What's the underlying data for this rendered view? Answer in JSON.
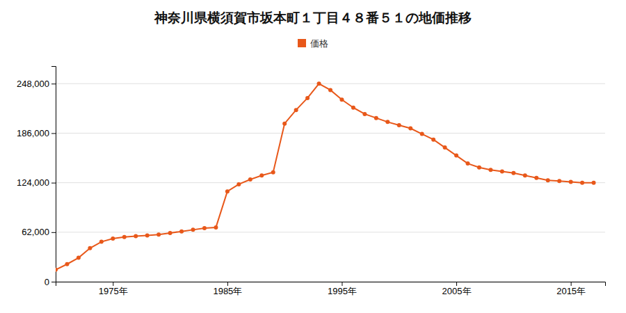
{
  "chart_data": {
    "type": "line",
    "title": "神奈川県横須賀市坂本町１丁目４８番５１の地価推移",
    "x": [
      1970,
      1971,
      1972,
      1973,
      1974,
      1975,
      1976,
      1977,
      1978,
      1979,
      1980,
      1981,
      1982,
      1983,
      1984,
      1985,
      1986,
      1987,
      1988,
      1989,
      1990,
      1991,
      1992,
      1993,
      1994,
      1995,
      1996,
      1997,
      1998,
      1999,
      2000,
      2001,
      2002,
      2003,
      2004,
      2005,
      2006,
      2007,
      2008,
      2009,
      2010,
      2011,
      2012,
      2013,
      2014,
      2015,
      2016,
      2017
    ],
    "series": [
      {
        "name": "価格",
        "color": "#E8581A",
        "values": [
          15000,
          22000,
          30000,
          42000,
          50000,
          54000,
          56000,
          57000,
          58000,
          59000,
          61000,
          63000,
          65000,
          67000,
          68000,
          113000,
          122000,
          128000,
          133000,
          137000,
          198000,
          215000,
          230000,
          248000,
          240000,
          228000,
          218000,
          210000,
          205000,
          200000,
          196000,
          192000,
          185000,
          178000,
          168000,
          158000,
          148000,
          143000,
          140000,
          138000,
          136000,
          133000,
          130000,
          127000,
          126000,
          125000,
          124000,
          124000
        ]
      }
    ],
    "xlim": [
      1970,
      2018
    ],
    "xticks": [
      {
        "value": 1975,
        "label": "1975年"
      },
      {
        "value": 1985,
        "label": "1985年"
      },
      {
        "value": 1995,
        "label": "1995年"
      },
      {
        "value": 2005,
        "label": "2005年"
      },
      {
        "value": 2015,
        "label": "2015年"
      }
    ],
    "ylim": [
      0,
      270000
    ],
    "yticks": [
      0,
      {
        "value": 62000,
        "label": "62,000"
      },
      {
        "value": 124000,
        "label": "124,000"
      },
      {
        "value": 186000,
        "label": "186,000"
      },
      {
        "value": 248000,
        "label": "248,000"
      }
    ],
    "grid": true,
    "legend": "top",
    "marker": "circle"
  }
}
